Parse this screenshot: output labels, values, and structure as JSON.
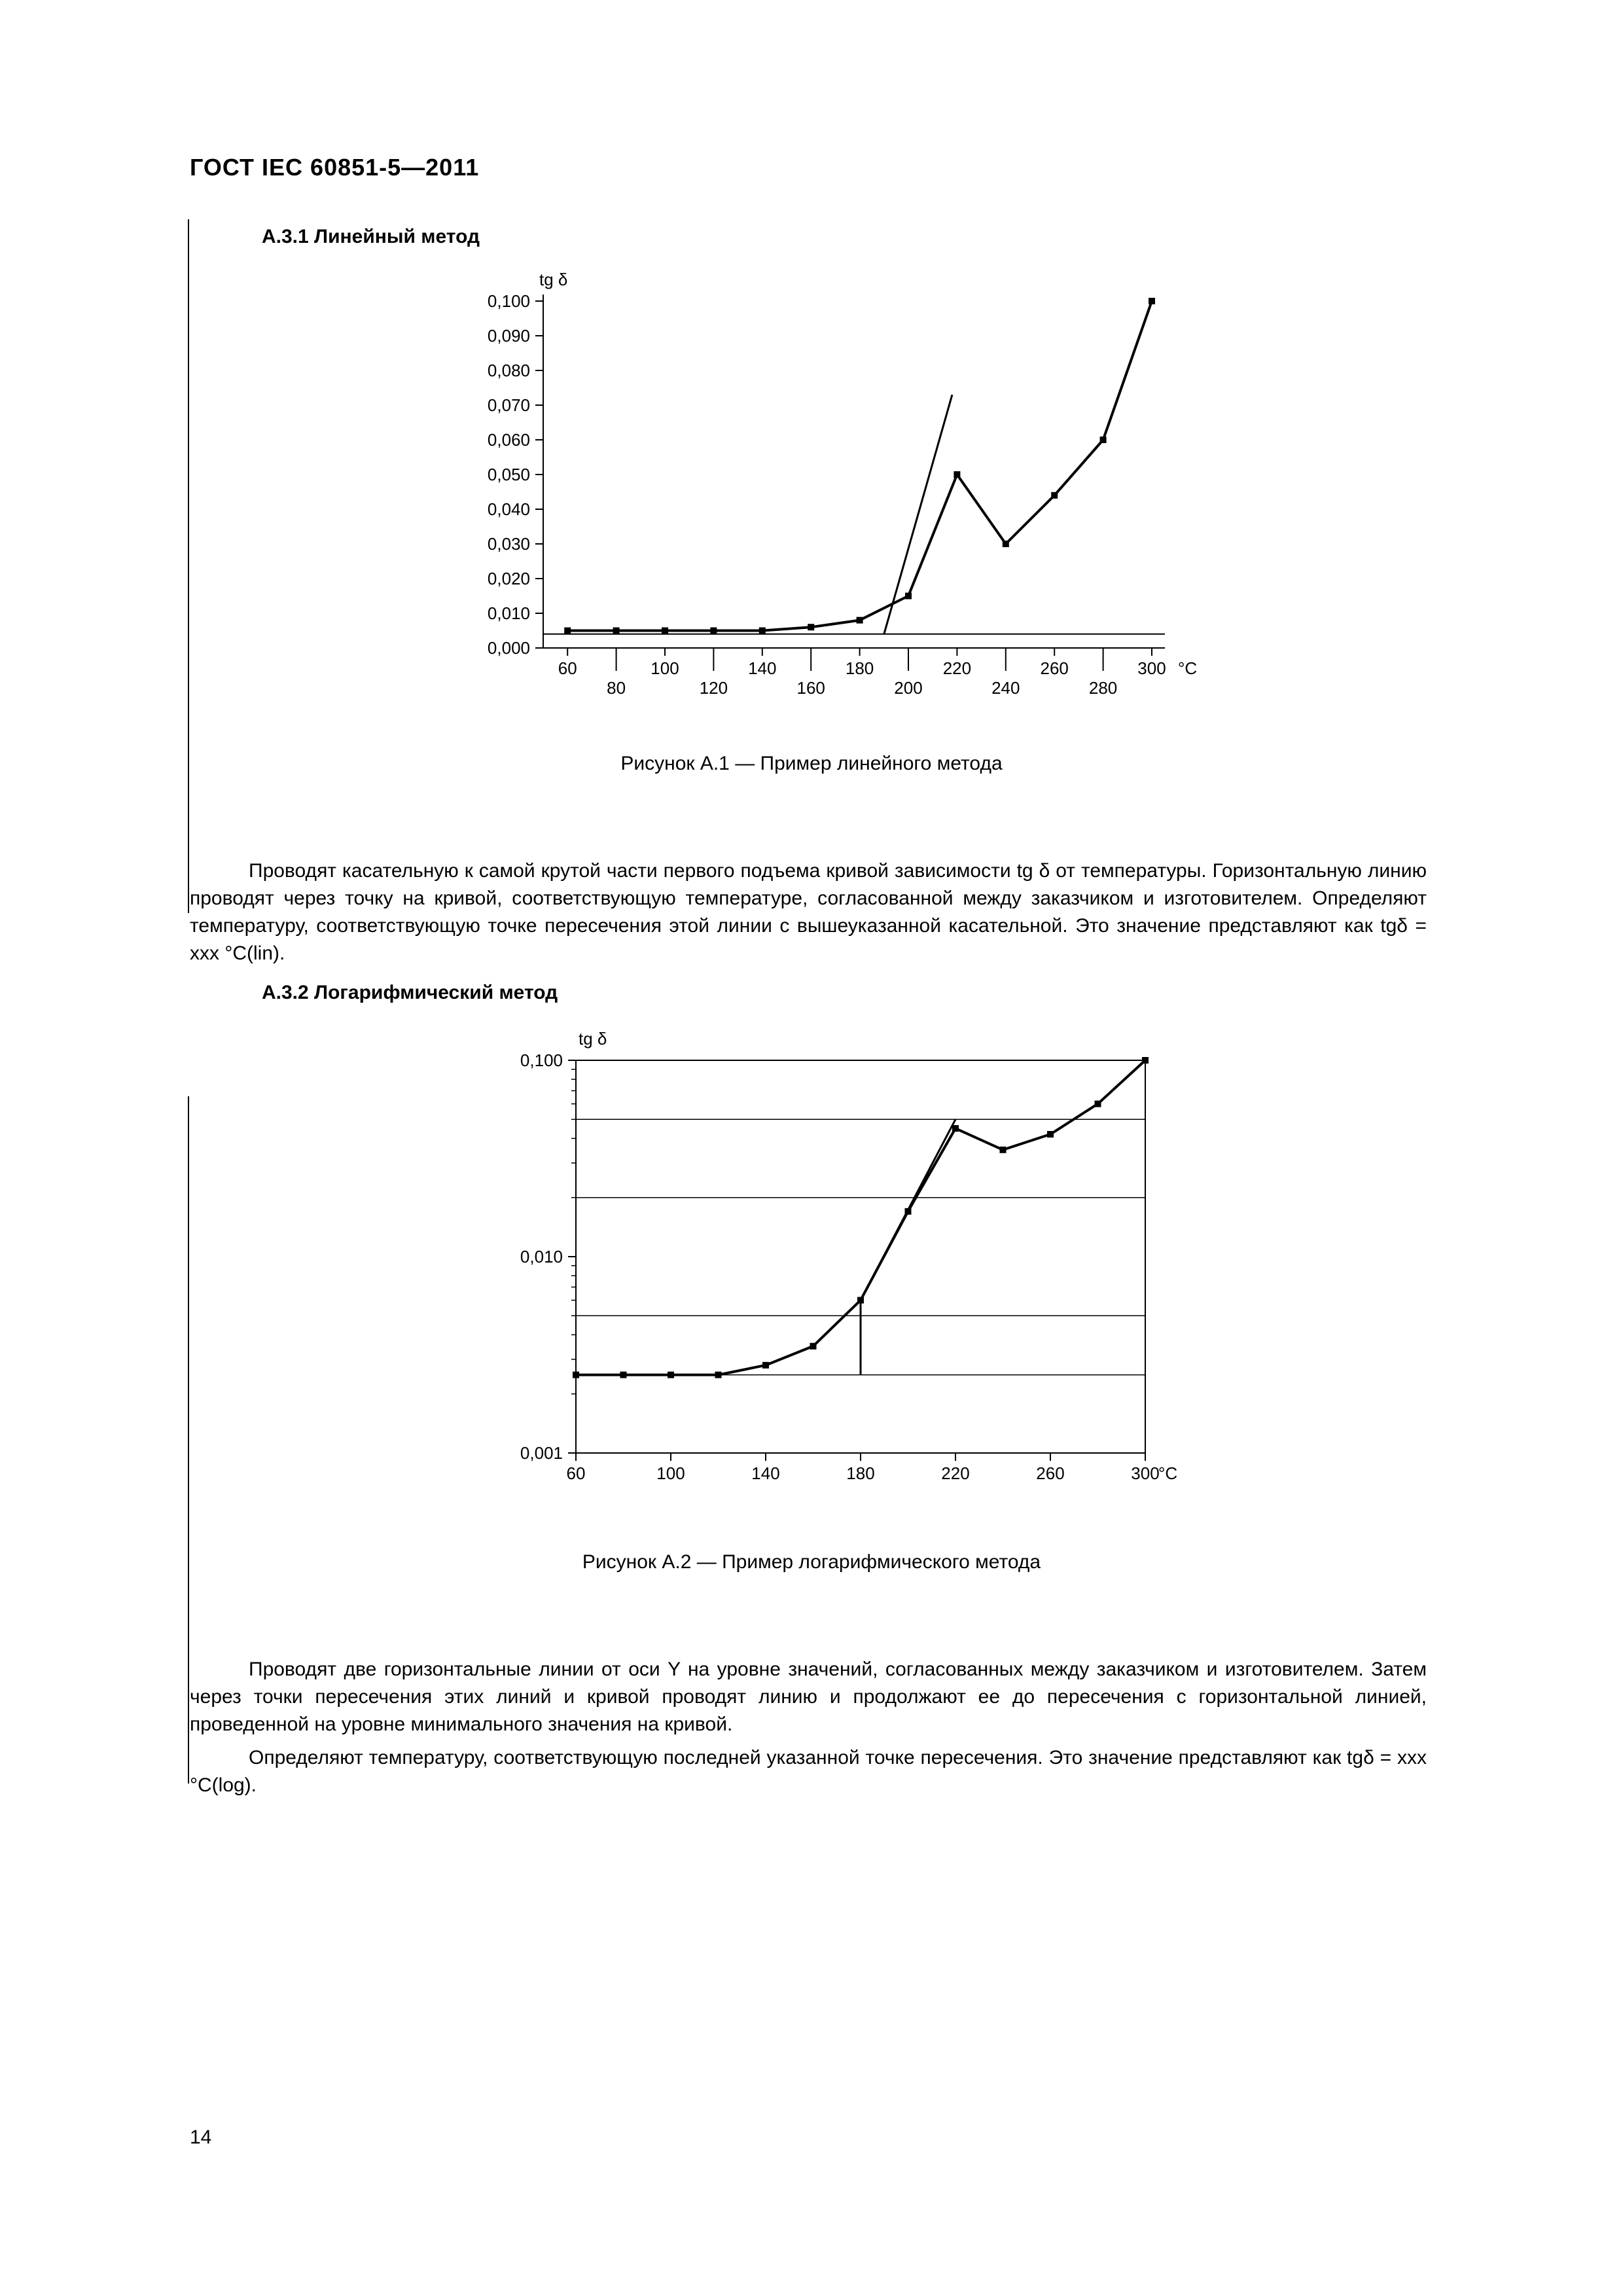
{
  "header": {
    "title": "ГОСТ  IEC 60851-5—2011"
  },
  "section1": {
    "heading": "А.3.1  Линейный метод",
    "caption": "Рисунок А.1 — Пример линейного метода",
    "para": "Проводят касательную к самой крутой части первого подъема кривой зависимости tg δ от температуры. Горизонтальную линию проводят через точку на кривой, соответствующую температуре, согласованной между заказчиком и изготовителем. Определяют температуру, соответствующую точке пересечения этой линии с вышеуказанной касательной. Это значение представляют как tgδ = xxx °C(lin)."
  },
  "section2": {
    "heading": "А.3.2  Логарифмический метод",
    "caption": "Рисунок А.2 — Пример логарифмического метода",
    "para1": "Проводят две горизонтальные линии от оси Y на уровне значений, согласованных между заказчиком и изготовителем. Затем через точки пересечения этих линий и кривой проводят линию и продолжают ее до пересечения с горизонтальной линией, проведенной на уровне минимального значения на кривой.",
    "para2": "Определяют температуру, соответствующую последней указанной точке пересечения. Это значение представляют как tgδ = xxx °C(log)."
  },
  "page_number": "14",
  "chart1": {
    "type": "line",
    "y_title": "tg δ",
    "x_unit": "°C",
    "xlim": [
      50,
      300
    ],
    "ylim": [
      0.0,
      0.1
    ],
    "yticks": [
      0.0,
      0.01,
      0.02,
      0.03,
      0.04,
      0.05,
      0.06,
      0.07,
      0.08,
      0.09,
      0.1
    ],
    "ytick_labels": [
      "0,000",
      "0,010",
      "0,020",
      "0,030",
      "0,040",
      "0,050",
      "0,060",
      "0,070",
      "0,080",
      "0,090",
      "0,100"
    ],
    "xticks_top": [
      60,
      100,
      140,
      180,
      220,
      260,
      300
    ],
    "xticks_bot": [
      80,
      120,
      160,
      200,
      240,
      280
    ],
    "series": [
      {
        "x": 60,
        "y": 0.005
      },
      {
        "x": 80,
        "y": 0.005
      },
      {
        "x": 100,
        "y": 0.005
      },
      {
        "x": 120,
        "y": 0.005
      },
      {
        "x": 140,
        "y": 0.005
      },
      {
        "x": 160,
        "y": 0.006
      },
      {
        "x": 180,
        "y": 0.008
      },
      {
        "x": 200,
        "y": 0.015
      },
      {
        "x": 220,
        "y": 0.05
      },
      {
        "x": 240,
        "y": 0.03
      },
      {
        "x": 260,
        "y": 0.044
      },
      {
        "x": 280,
        "y": 0.06
      },
      {
        "x": 300,
        "y": 0.1
      }
    ],
    "tangent_line": [
      {
        "x": 190,
        "y": 0.004
      },
      {
        "x": 218,
        "y": 0.073
      }
    ],
    "baseline": 0.004,
    "line_width": 4,
    "marker_size": 10,
    "axis_color": "#000000",
    "background": "#ffffff",
    "font_size": 26
  },
  "chart2": {
    "type": "line-log",
    "y_title": "tg δ",
    "x_unit": "°C",
    "xlim": [
      60,
      300
    ],
    "ylim_log": [
      0.001,
      0.1
    ],
    "yticks_major": [
      0.001,
      0.01,
      0.1
    ],
    "ytick_labels": [
      "0,001",
      "0,010",
      "0,100"
    ],
    "xticks": [
      60,
      100,
      140,
      180,
      220,
      260,
      300
    ],
    "series": [
      {
        "x": 60,
        "y": 0.0025
      },
      {
        "x": 80,
        "y": 0.0025
      },
      {
        "x": 100,
        "y": 0.0025
      },
      {
        "x": 120,
        "y": 0.0025
      },
      {
        "x": 140,
        "y": 0.0028
      },
      {
        "x": 160,
        "y": 0.0035
      },
      {
        "x": 180,
        "y": 0.006
      },
      {
        "x": 200,
        "y": 0.017
      },
      {
        "x": 220,
        "y": 0.045
      },
      {
        "x": 240,
        "y": 0.035
      },
      {
        "x": 260,
        "y": 0.042
      },
      {
        "x": 280,
        "y": 0.06
      },
      {
        "x": 300,
        "y": 0.1
      }
    ],
    "h_lines": [
      0.0025,
      0.005,
      0.02,
      0.05
    ],
    "tangent_line": [
      {
        "x": 180,
        "y": 0.0025
      },
      {
        "x": 180,
        "y": 0.006
      },
      {
        "x": 220,
        "y": 0.05
      }
    ],
    "line_width": 4,
    "marker_size": 10,
    "axis_color": "#000000",
    "background": "#ffffff",
    "font_size": 26
  }
}
